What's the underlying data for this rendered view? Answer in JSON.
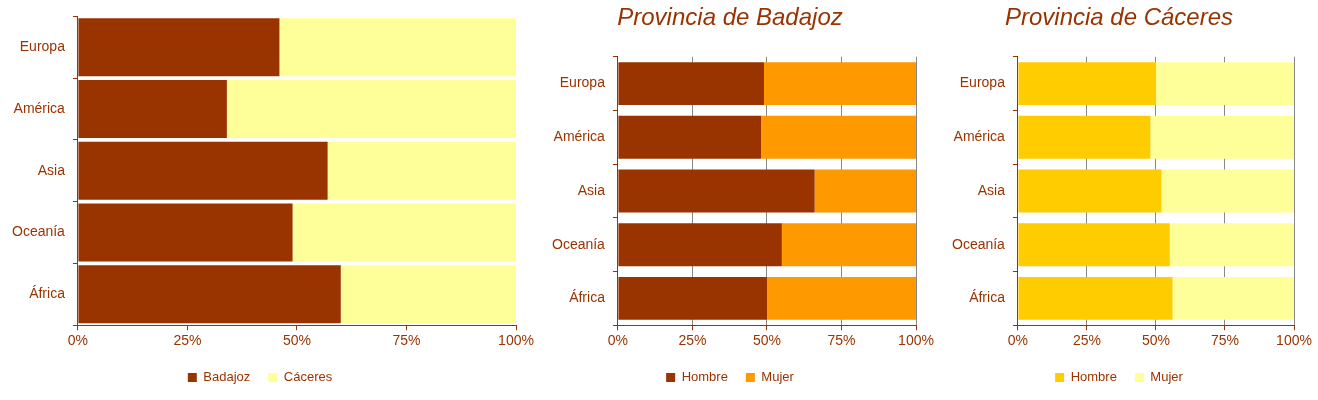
{
  "chart_data": [
    {
      "type": "bar",
      "orientation": "horizontal",
      "stacked": true,
      "categories": [
        "Europa",
        "América",
        "Asia",
        "Oceanía",
        "África"
      ],
      "series": [
        {
          "name": "Badajoz",
          "color": "#993300",
          "values": [
            46,
            34,
            57,
            49,
            60
          ]
        },
        {
          "name": "Cáceres",
          "color": "#ffff99",
          "values": [
            54,
            66,
            43,
            51,
            40
          ]
        }
      ],
      "xlim": [
        0,
        100
      ],
      "xticks": [
        {
          "value": 0,
          "label": "0%"
        },
        {
          "value": 25,
          "label": "25%"
        },
        {
          "value": 50,
          "label": "50%"
        },
        {
          "value": 75,
          "label": "75%"
        },
        {
          "value": 100,
          "label": "100%"
        }
      ],
      "grid": false,
      "legend": "bottom"
    },
    {
      "type": "bar",
      "orientation": "horizontal",
      "stacked": true,
      "title": "Provincia de Badajoz",
      "categories": [
        "Europa",
        "América",
        "Asia",
        "Oceanía",
        "África"
      ],
      "series": [
        {
          "name": "Hombre",
          "color": "#993300",
          "values": [
            49,
            48,
            66,
            55,
            50
          ]
        },
        {
          "name": "Mujer",
          "color": "#ff9900",
          "values": [
            51,
            52,
            34,
            45,
            50
          ]
        }
      ],
      "xlim": [
        0,
        100
      ],
      "xticks": [
        {
          "value": 0,
          "label": "0%"
        },
        {
          "value": 25,
          "label": "25%"
        },
        {
          "value": 50,
          "label": "50%"
        },
        {
          "value": 75,
          "label": "75%"
        },
        {
          "value": 100,
          "label": "100%"
        }
      ],
      "grid": "x",
      "legend": "bottom"
    },
    {
      "type": "bar",
      "orientation": "horizontal",
      "stacked": true,
      "title": "Provincia de Cáceres",
      "categories": [
        "Europa",
        "América",
        "Asia",
        "Oceanía",
        "África"
      ],
      "series": [
        {
          "name": "Hombre",
          "color": "#ffcc00",
          "values": [
            50,
            48,
            52,
            55,
            56
          ]
        },
        {
          "name": "Mujer",
          "color": "#ffff99",
          "values": [
            50,
            52,
            48,
            45,
            44
          ]
        }
      ],
      "xlim": [
        0,
        100
      ],
      "xticks": [
        {
          "value": 0,
          "label": "0%"
        },
        {
          "value": 25,
          "label": "25%"
        },
        {
          "value": 50,
          "label": "50%"
        },
        {
          "value": 75,
          "label": "75%"
        },
        {
          "value": 100,
          "label": "100%"
        }
      ],
      "grid": "x",
      "legend": "bottom"
    }
  ]
}
